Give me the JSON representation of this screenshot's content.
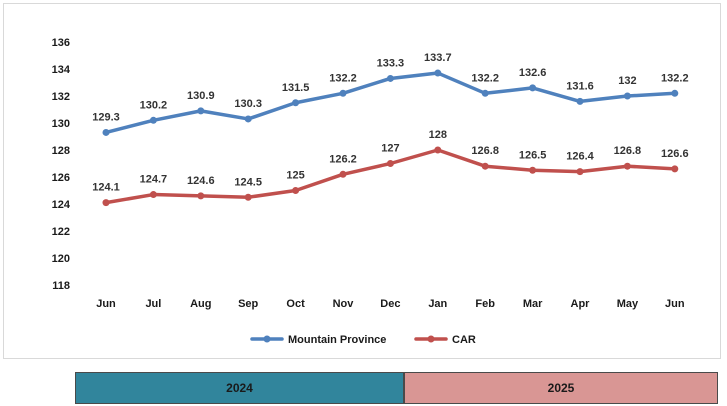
{
  "chart_data": {
    "type": "line",
    "categories": [
      "Jun",
      "Jul",
      "Aug",
      "Sep",
      "Oct",
      "Nov",
      "Dec",
      "Jan",
      "Feb",
      "Mar",
      "Apr",
      "May",
      "Jun"
    ],
    "series": [
      {
        "name": "Mountain Province",
        "color": "#4f81bd",
        "values": [
          129.3,
          130.2,
          130.9,
          130.3,
          131.5,
          132.2,
          133.3,
          133.7,
          132.2,
          132.6,
          131.6,
          132,
          132.2
        ],
        "labels": [
          "129.3",
          "130.2",
          "130.9",
          "130.3",
          "131.5",
          "132.2",
          "133.3",
          "133.7",
          "132.2",
          "132.6",
          "131.6",
          "132",
          "132.2"
        ]
      },
      {
        "name": "CAR",
        "color": "#c0504d",
        "values": [
          124.1,
          124.7,
          124.6,
          124.5,
          125,
          126.2,
          127,
          128,
          126.8,
          126.5,
          126.4,
          126.8,
          126.6
        ],
        "labels": [
          "124.1",
          "124.7",
          "124.6",
          "124.5",
          "125",
          "126.2",
          "127",
          "128",
          "126.8",
          "126.5",
          "126.4",
          "126.8",
          "126.6"
        ]
      }
    ],
    "ylim": [
      118,
      136
    ],
    "yticks": [
      "118",
      "120",
      "122",
      "124",
      "126",
      "128",
      "130",
      "132",
      "134",
      "136"
    ],
    "grid": false,
    "legend": "bottom"
  },
  "year_bands": [
    {
      "label": "2024",
      "color": "#31859c"
    },
    {
      "label": "2025",
      "color": "#d99694"
    }
  ]
}
